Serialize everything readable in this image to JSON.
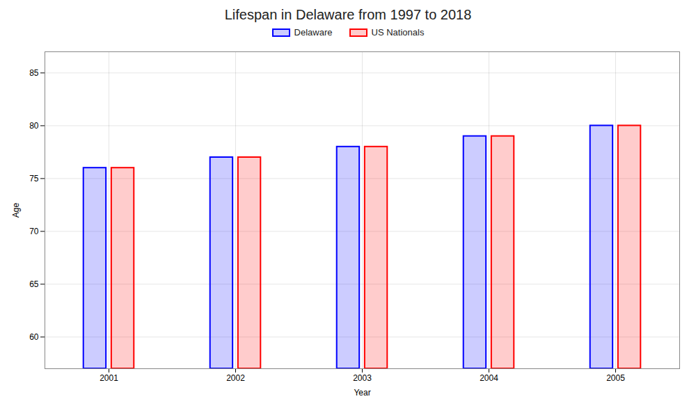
{
  "chart_data": {
    "type": "bar",
    "title": "Lifespan in Delaware from 1997 to 2018",
    "xlabel": "Year",
    "ylabel": "Age",
    "categories": [
      2001,
      2002,
      2003,
      2004,
      2005
    ],
    "series": [
      {
        "name": "Delaware",
        "color": "#0000ff",
        "values": [
          76,
          77,
          78,
          79,
          80
        ]
      },
      {
        "name": "US Nationals",
        "color": "#ff0000",
        "values": [
          76,
          77,
          78,
          79,
          80
        ]
      }
    ],
    "ylim": [
      57,
      87
    ],
    "yticks": [
      60,
      65,
      70,
      75,
      80,
      85
    ],
    "grid": true,
    "legend": "top"
  }
}
